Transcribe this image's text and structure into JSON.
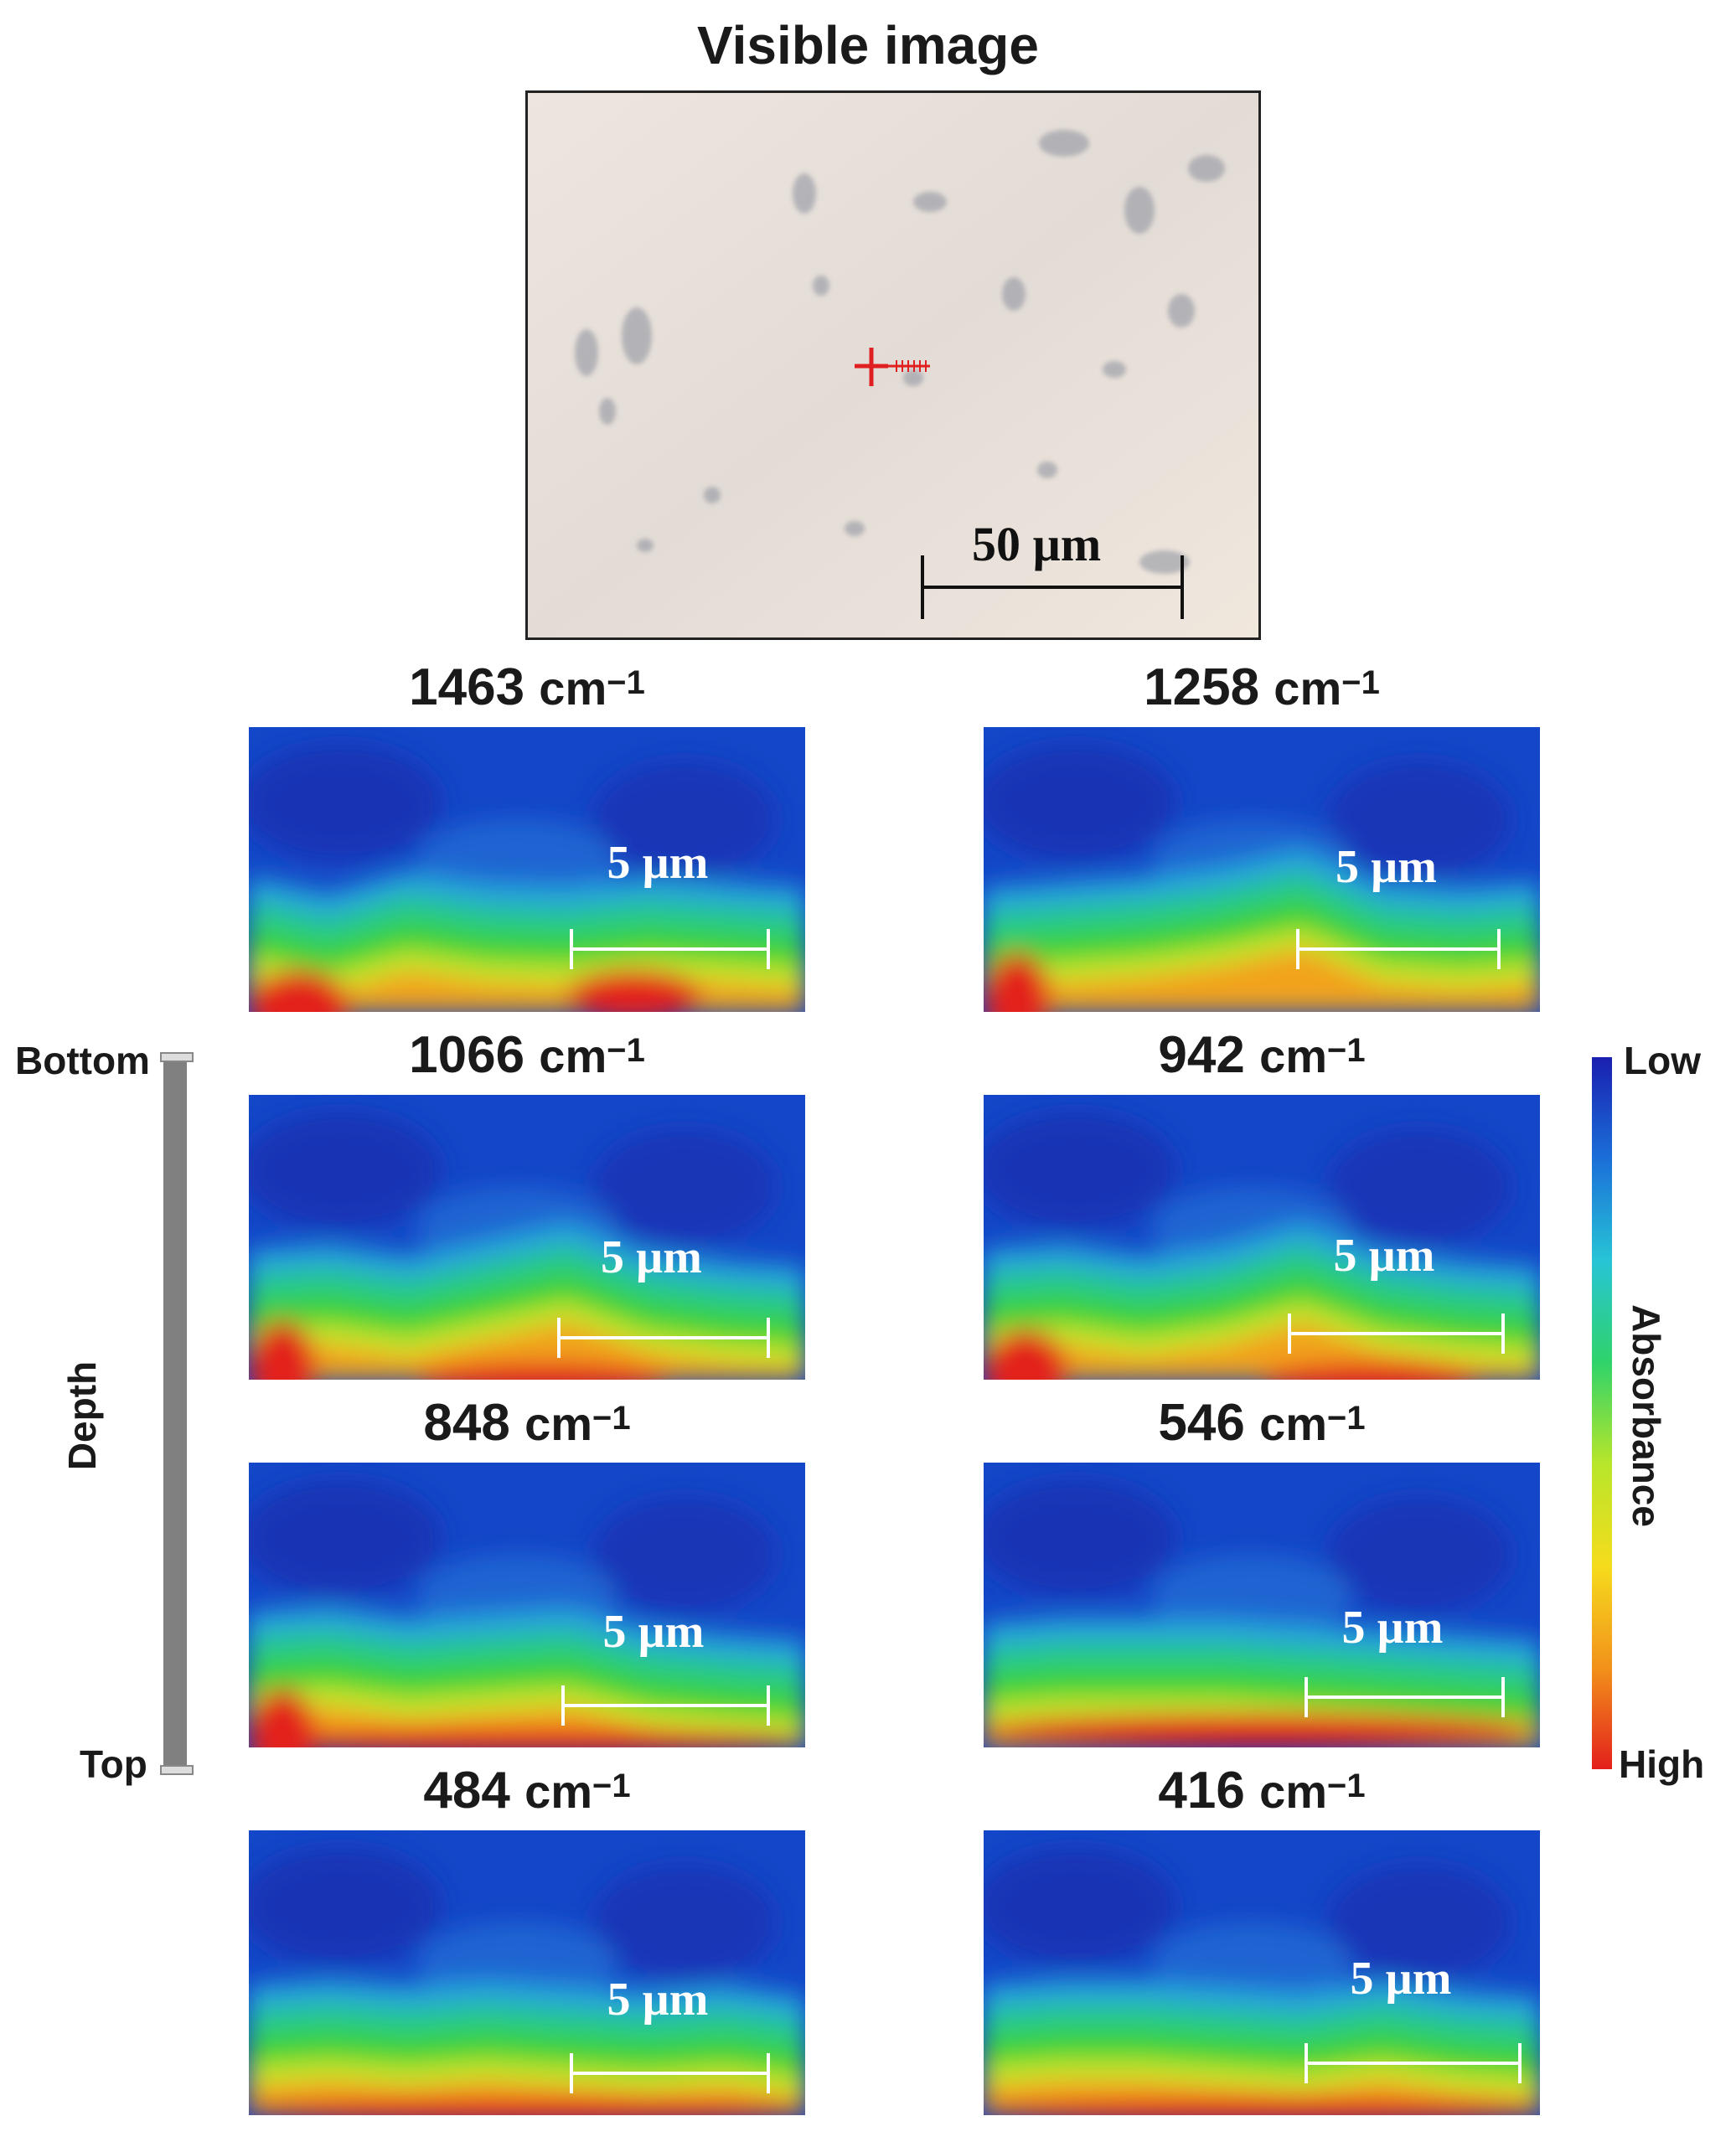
{
  "figure": {
    "visible_title": "Visible image",
    "visible_scale_label": "50 µm",
    "panels": [
      {
        "wavenumber": "1463",
        "unit": "cm",
        "exponent": "−1",
        "scale_label": "5 µm"
      },
      {
        "wavenumber": "1258",
        "unit": "cm",
        "exponent": "−1",
        "scale_label": "5 µm"
      },
      {
        "wavenumber": "1066",
        "unit": "cm",
        "exponent": "−1",
        "scale_label": "5 µm"
      },
      {
        "wavenumber": "942",
        "unit": "cm",
        "exponent": "−1",
        "scale_label": "5 µm"
      },
      {
        "wavenumber": "848",
        "unit": "cm",
        "exponent": "−1",
        "scale_label": "5 µm"
      },
      {
        "wavenumber": "546",
        "unit": "cm",
        "exponent": "−1",
        "scale_label": "5 µm"
      },
      {
        "wavenumber": "484",
        "unit": "cm",
        "exponent": "−1",
        "scale_label": "5 µm"
      },
      {
        "wavenumber": "416",
        "unit": "cm",
        "exponent": "−1",
        "scale_label": "5 µm"
      }
    ],
    "depth_axis": {
      "label": "Depth",
      "top_label": "Top",
      "bottom_label": "Bottom"
    },
    "colorbar": {
      "label": "Absorbance",
      "low_label": "Low",
      "high_label": "High",
      "colors": [
        "#1a1fb0",
        "#1b6fd8",
        "#27c4d6",
        "#2fd36a",
        "#b8e62a",
        "#f5dc1c",
        "#f2921b",
        "#e3201c"
      ]
    }
  }
}
